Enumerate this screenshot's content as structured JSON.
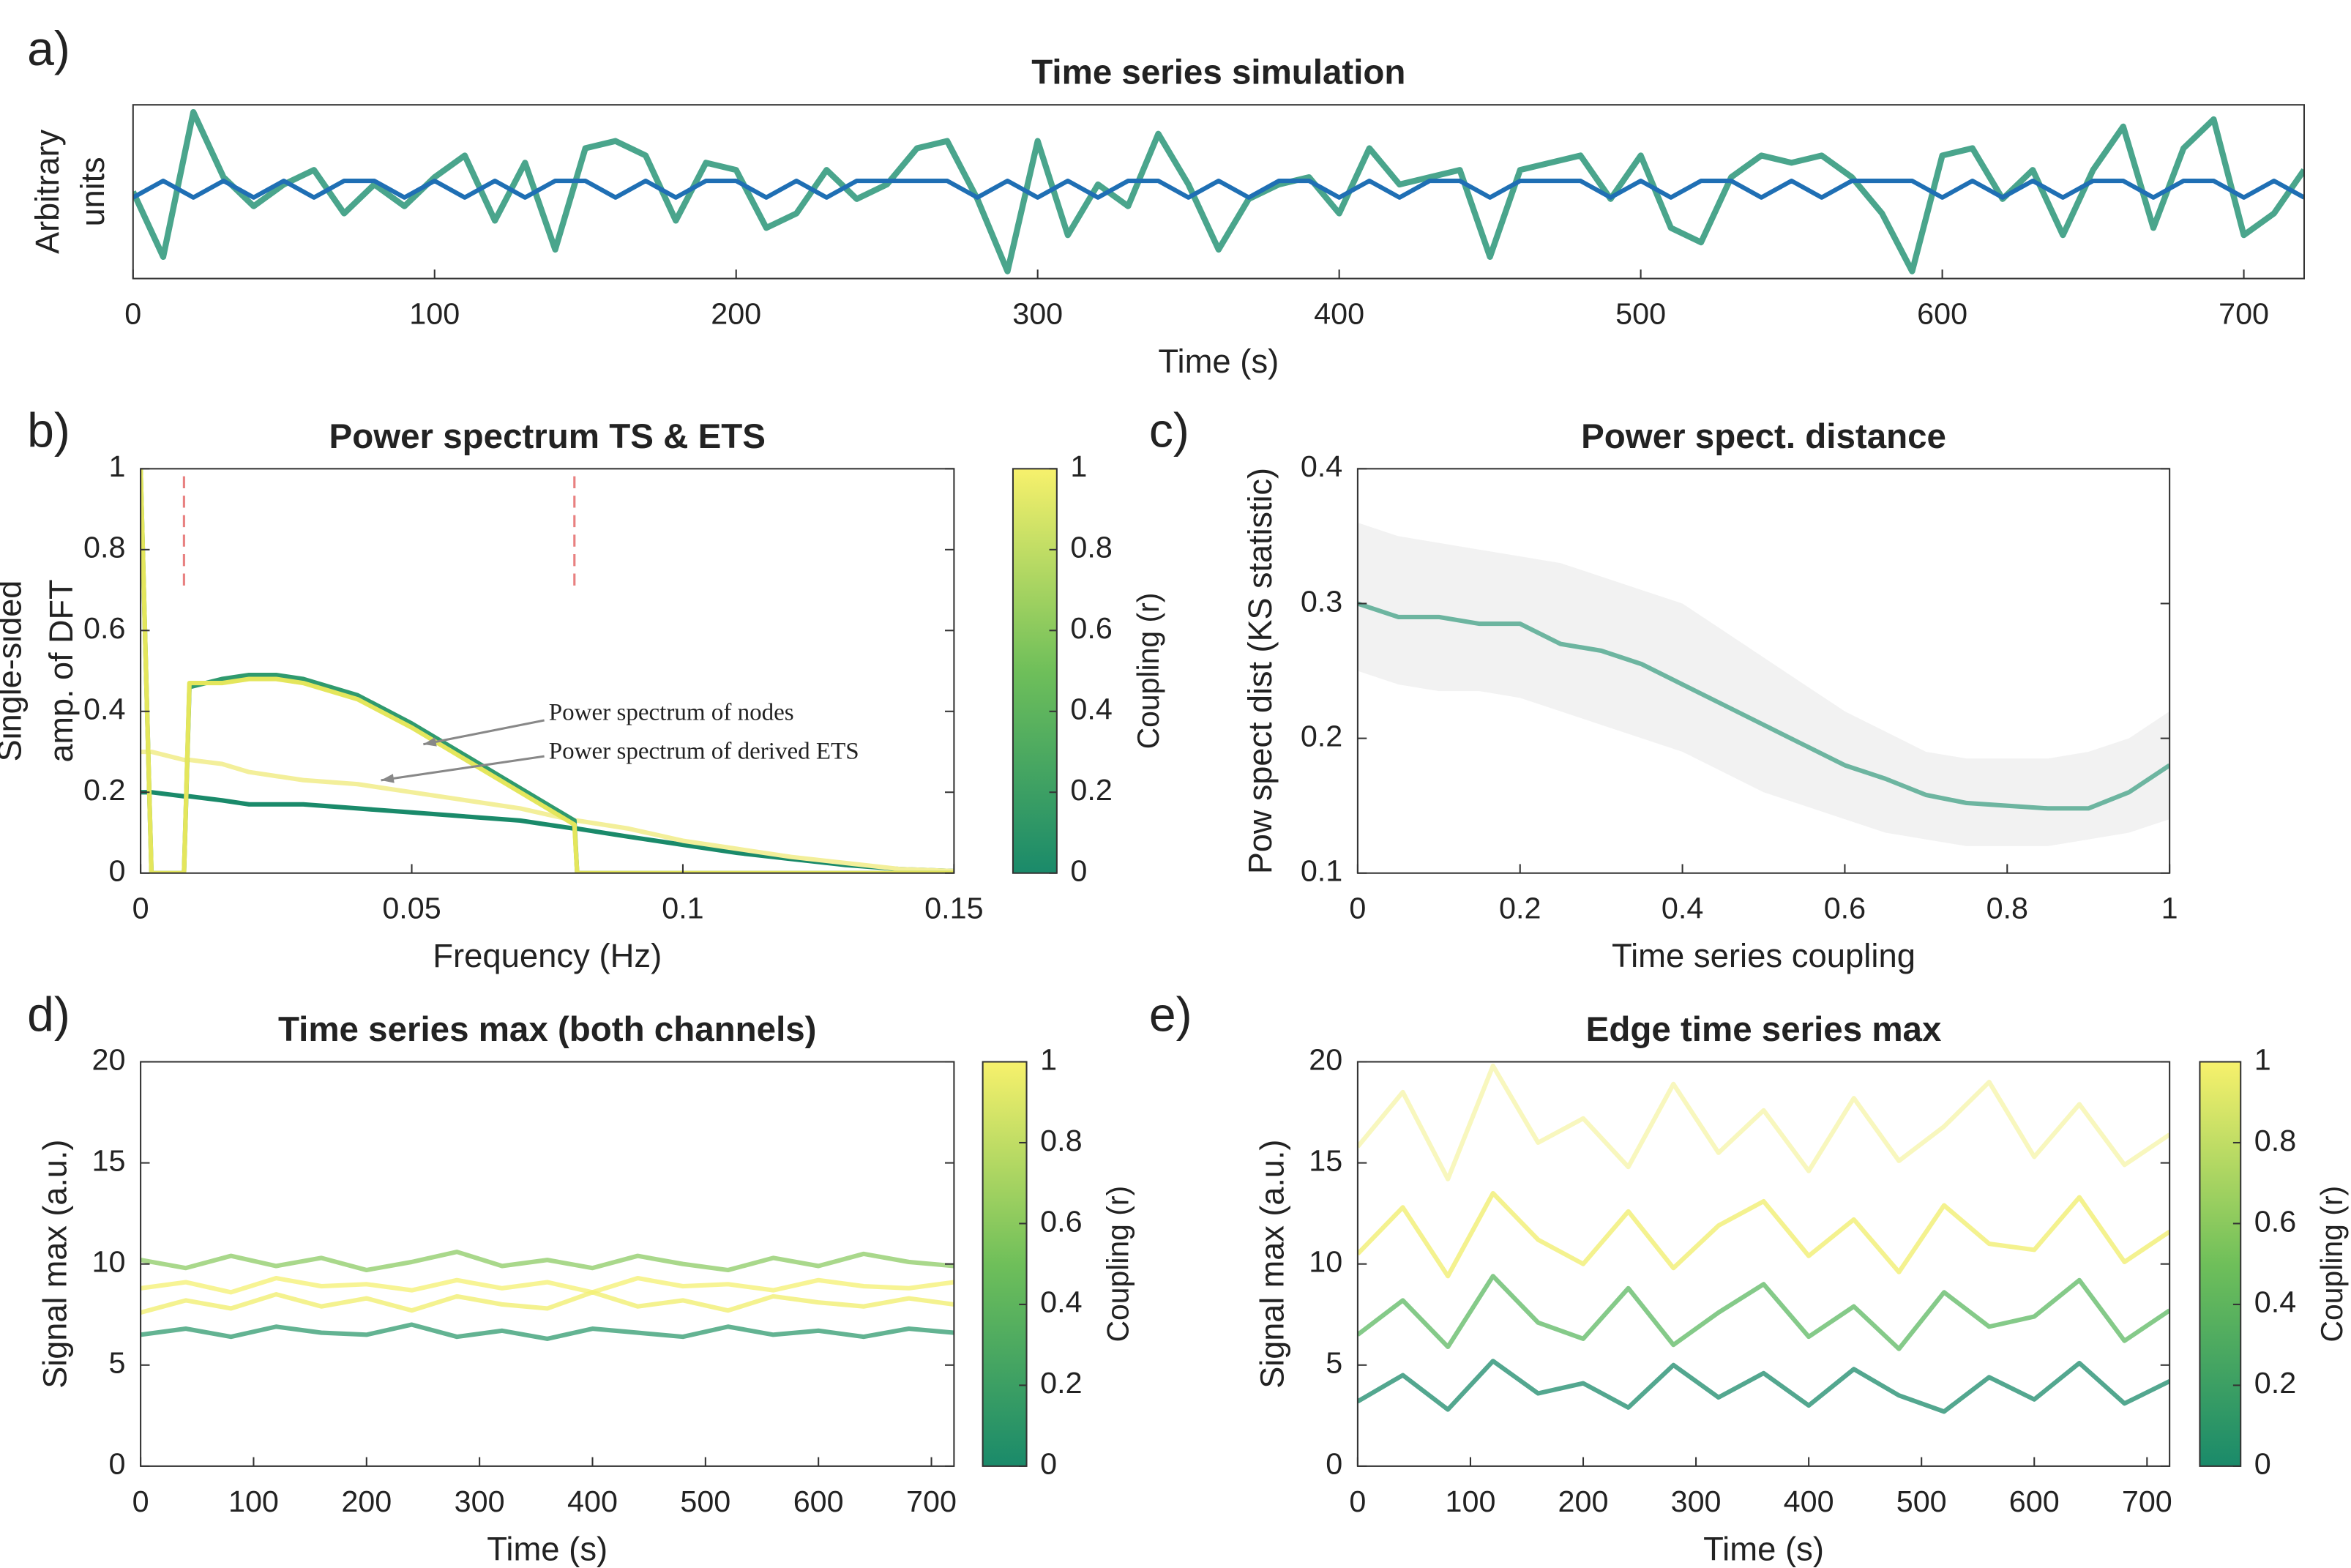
{
  "chart_data": [
    {
      "type": "line",
      "panel_label": "a)",
      "title": "Time series simulation",
      "xlabel": "Time (s)",
      "ylabel": [
        "Arbitrary",
        "units"
      ],
      "xlim": [
        0,
        720
      ],
      "xticks": [
        0,
        100,
        200,
        300,
        400,
        500,
        600,
        700
      ],
      "ylim": [
        -1.2,
        1.2
      ],
      "x": [
        0,
        10,
        20,
        30,
        40,
        50,
        60,
        70,
        80,
        90,
        100,
        110,
        120,
        130,
        140,
        150,
        160,
        170,
        180,
        190,
        200,
        210,
        220,
        230,
        240,
        250,
        260,
        270,
        280,
        290,
        300,
        310,
        320,
        330,
        340,
        350,
        360,
        370,
        380,
        390,
        400,
        410,
        420,
        430,
        440,
        450,
        460,
        470,
        480,
        490,
        500,
        510,
        520,
        530,
        540,
        550,
        560,
        570,
        580,
        590,
        600,
        610,
        620,
        630,
        640,
        650,
        660,
        670,
        680,
        690,
        700,
        710,
        720
      ],
      "series": [
        {
          "color": "#4aa58c",
          "values": [
            0,
            -0.9,
            1.1,
            0.2,
            -0.2,
            0.1,
            0.3,
            -0.3,
            0.1,
            -0.2,
            0.2,
            0.5,
            -0.4,
            0.4,
            -0.8,
            0.6,
            0.7,
            0.5,
            -0.4,
            0.4,
            0.3,
            -0.5,
            -0.3,
            0.3,
            -0.1,
            0.1,
            0.6,
            0.7,
            -0.1,
            -1.1,
            0.7,
            -0.6,
            0.1,
            -0.2,
            0.8,
            0.1,
            -0.8,
            -0.1,
            0.1,
            0.2,
            -0.3,
            0.6,
            0.1,
            0.2,
            0.3,
            -0.9,
            0.3,
            0.4,
            0.5,
            -0.1,
            0.5,
            -0.5,
            -0.7,
            0.2,
            0.5,
            0.4,
            0.5,
            0.2,
            -0.3,
            -1.1,
            0.5,
            0.6,
            -0.1,
            0.3,
            -0.6,
            0.3,
            0.9,
            -0.5,
            0.6,
            1.0,
            -0.6,
            -0.3,
            0.3
          ]
        },
        {
          "color": "#1f6fb4",
          "values": [
            -0.08,
            0.15,
            -0.08,
            0.15,
            -0.08,
            0.15,
            -0.08,
            0.15,
            0.15,
            -0.08,
            0.15,
            -0.08,
            0.15,
            -0.08,
            0.15,
            0.15,
            -0.08,
            0.15,
            -0.08,
            0.15,
            0.15,
            -0.08,
            0.15,
            -0.08,
            0.15,
            0.15,
            0.15,
            0.15,
            -0.08,
            0.15,
            -0.08,
            0.15,
            -0.08,
            0.15,
            0.15,
            -0.08,
            0.15,
            -0.08,
            0.15,
            0.15,
            -0.08,
            0.15,
            -0.08,
            0.15,
            0.15,
            -0.08,
            0.15,
            0.15,
            0.15,
            -0.08,
            0.15,
            -0.08,
            0.15,
            0.15,
            -0.08,
            0.15,
            -0.08,
            0.15,
            0.15,
            0.15,
            -0.08,
            0.15,
            -0.08,
            0.15,
            -0.08,
            0.15,
            0.15,
            -0.08,
            0.15,
            0.15,
            -0.08,
            0.15,
            -0.08
          ]
        }
      ]
    },
    {
      "type": "line",
      "panel_label": "b)",
      "title": "Power spectrum TS & ETS",
      "xlabel": "Frequency (Hz)",
      "ylabel": [
        "Single-sided",
        "amp. of DFT"
      ],
      "xlim": [
        0,
        0.15
      ],
      "xticks": [
        0,
        0.05,
        0.1,
        0.15
      ],
      "ylim": [
        0,
        1
      ],
      "yticks": [
        0,
        0.2,
        0.4,
        0.6,
        0.8,
        1
      ],
      "colorbar": {
        "label": "Coupling (r)",
        "clim": [
          0,
          1
        ],
        "ticks": [
          0,
          0.2,
          0.4,
          0.6,
          0.8,
          1
        ],
        "colormap": [
          "#1a8a6a",
          "#6fbf5a",
          "#f7f16c"
        ]
      },
      "vlines": [
        0.008,
        0.08
      ],
      "vline_color": "#e88080",
      "annotations": [
        "Power spectrum of nodes",
        "Power spectrum of derived ETS"
      ],
      "x": [
        0,
        0.002,
        0.008,
        0.009,
        0.015,
        0.02,
        0.025,
        0.03,
        0.04,
        0.05,
        0.06,
        0.07,
        0.08,
        0.0805,
        0.09,
        0.1,
        0.11,
        0.12,
        0.13,
        0.14,
        0.15
      ],
      "series": [
        {
          "color": "#1a8a6a",
          "values": [
            0.2,
            0.2,
            0.19,
            0.19,
            0.18,
            0.17,
            0.17,
            0.17,
            0.16,
            0.15,
            0.14,
            0.13,
            0.11,
            0.11,
            0.09,
            0.07,
            0.05,
            0.035,
            0.02,
            0.01,
            0.005
          ]
        },
        {
          "color": "#f3ef9a",
          "values": [
            0.3,
            0.3,
            0.28,
            0.28,
            0.27,
            0.25,
            0.24,
            0.23,
            0.22,
            0.2,
            0.18,
            0.16,
            0.13,
            0.13,
            0.11,
            0.08,
            0.06,
            0.04,
            0.025,
            0.01,
            0.005
          ]
        },
        {
          "color": "#2f9a6e",
          "values": [
            1,
            0,
            0,
            0.46,
            0.48,
            0.49,
            0.49,
            0.48,
            0.44,
            0.37,
            0.29,
            0.21,
            0.13,
            0,
            0,
            0,
            0,
            0,
            0,
            0,
            0
          ]
        },
        {
          "color": "#e4e65c",
          "values": [
            1,
            0,
            0,
            0.47,
            0.47,
            0.48,
            0.48,
            0.47,
            0.43,
            0.36,
            0.28,
            0.2,
            0.12,
            0,
            0,
            0,
            0,
            0,
            0,
            0,
            0
          ]
        }
      ]
    },
    {
      "type": "line",
      "panel_label": "c)",
      "title": "Power spect. distance",
      "xlabel": "Time series coupling",
      "ylabel": "Pow spect dist (KS statistic)",
      "xlim": [
        0,
        1
      ],
      "xticks": [
        0,
        0.2,
        0.4,
        0.6,
        0.8,
        1
      ],
      "ylim": [
        0.1,
        0.4
      ],
      "yticks": [
        0.1,
        0.2,
        0.3,
        0.4
      ],
      "x": [
        0,
        0.05,
        0.1,
        0.15,
        0.2,
        0.25,
        0.3,
        0.35,
        0.4,
        0.45,
        0.5,
        0.55,
        0.6,
        0.65,
        0.7,
        0.75,
        0.8,
        0.85,
        0.9,
        0.95,
        1
      ],
      "band": {
        "color": "#f2f2f2",
        "upper": [
          0.36,
          0.35,
          0.345,
          0.34,
          0.335,
          0.33,
          0.32,
          0.31,
          0.3,
          0.28,
          0.26,
          0.24,
          0.22,
          0.205,
          0.19,
          0.185,
          0.185,
          0.185,
          0.19,
          0.2,
          0.22
        ],
        "lower": [
          0.25,
          0.24,
          0.235,
          0.235,
          0.23,
          0.22,
          0.21,
          0.2,
          0.19,
          0.175,
          0.16,
          0.15,
          0.14,
          0.13,
          0.125,
          0.12,
          0.12,
          0.12,
          0.125,
          0.13,
          0.14
        ]
      },
      "series": [
        {
          "color": "#6db5a0",
          "values": [
            0.3,
            0.29,
            0.29,
            0.285,
            0.285,
            0.27,
            0.265,
            0.255,
            0.24,
            0.225,
            0.21,
            0.195,
            0.18,
            0.17,
            0.158,
            0.152,
            0.15,
            0.148,
            0.148,
            0.16,
            0.18
          ]
        }
      ]
    },
    {
      "type": "line",
      "panel_label": "d)",
      "title": "Time series max (both channels)",
      "xlabel": "Time (s)",
      "ylabel": "Signal max (a.u.)",
      "xlim": [
        0,
        720
      ],
      "xticks": [
        0,
        100,
        200,
        300,
        400,
        500,
        600,
        700
      ],
      "ylim": [
        0,
        20
      ],
      "yticks": [
        0,
        5,
        10,
        15,
        20
      ],
      "colorbar": {
        "label": "Coupling (r)",
        "clim": [
          0,
          1
        ],
        "ticks": [
          0,
          0.2,
          0.4,
          0.6,
          0.8,
          1
        ],
        "colormap": [
          "#1a8a6a",
          "#6fbf5a",
          "#f7f16c"
        ]
      },
      "x": [
        0,
        40,
        80,
        120,
        160,
        200,
        240,
        280,
        320,
        360,
        400,
        440,
        480,
        520,
        560,
        600,
        640,
        680,
        720
      ],
      "series": [
        {
          "color": "#2f9a6e",
          "values": [
            6.5,
            6.8,
            6.4,
            6.9,
            6.6,
            6.5,
            7.0,
            6.4,
            6.7,
            6.3,
            6.8,
            6.6,
            6.4,
            6.9,
            6.5,
            6.7,
            6.4,
            6.8,
            6.6
          ]
        },
        {
          "color": "#8ccb64",
          "values": [
            10.2,
            9.8,
            10.4,
            9.9,
            10.3,
            9.7,
            10.1,
            10.6,
            9.9,
            10.2,
            9.8,
            10.4,
            10.0,
            9.7,
            10.3,
            9.9,
            10.5,
            10.1,
            9.9
          ]
        },
        {
          "color": "#f0ee6a",
          "values": [
            7.6,
            8.2,
            7.8,
            8.5,
            7.9,
            8.3,
            7.7,
            8.4,
            8.0,
            7.8,
            8.6,
            7.9,
            8.2,
            7.7,
            8.4,
            8.1,
            7.9,
            8.3,
            8.0
          ]
        },
        {
          "color": "#f4f070",
          "values": [
            8.8,
            9.1,
            8.6,
            9.3,
            8.9,
            9.0,
            8.7,
            9.2,
            8.8,
            9.1,
            8.6,
            9.3,
            8.9,
            9.0,
            8.7,
            9.2,
            8.9,
            8.8,
            9.1
          ]
        }
      ]
    },
    {
      "type": "line",
      "panel_label": "e)",
      "title": "Edge time series max",
      "xlabel": "Time (s)",
      "ylabel": "Signal max (a.u.)",
      "xlim": [
        0,
        720
      ],
      "xticks": [
        0,
        100,
        200,
        300,
        400,
        500,
        600,
        700
      ],
      "ylim": [
        0,
        20
      ],
      "yticks": [
        0,
        5,
        10,
        15,
        20
      ],
      "colorbar": {
        "label": "Coupling (r)",
        "clim": [
          0,
          1
        ],
        "ticks": [
          0,
          0.2,
          0.4,
          0.6,
          0.8,
          1
        ],
        "colormap": [
          "#1a8a6a",
          "#6fbf5a",
          "#f7f16c"
        ]
      },
      "x": [
        0,
        40,
        80,
        120,
        160,
        200,
        240,
        280,
        320,
        360,
        400,
        440,
        480,
        520,
        560,
        600,
        640,
        680,
        720
      ],
      "series": [
        {
          "color": "#1a8a6a",
          "values": [
            3.2,
            4.5,
            2.8,
            5.2,
            3.6,
            4.1,
            2.9,
            5.0,
            3.4,
            4.6,
            3.0,
            4.8,
            3.5,
            2.7,
            4.4,
            3.3,
            5.1,
            3.1,
            4.2
          ]
        },
        {
          "color": "#5cb862",
          "values": [
            6.5,
            8.2,
            5.9,
            9.4,
            7.1,
            6.3,
            8.8,
            6.0,
            7.6,
            9.0,
            6.4,
            7.9,
            5.8,
            8.6,
            6.9,
            7.4,
            9.2,
            6.2,
            7.7
          ]
        },
        {
          "color": "#f0ee6a",
          "values": [
            10.5,
            12.8,
            9.4,
            13.5,
            11.2,
            10.0,
            12.6,
            9.8,
            11.9,
            13.1,
            10.4,
            12.2,
            9.6,
            12.9,
            11.0,
            10.7,
            13.3,
            10.1,
            11.6
          ]
        },
        {
          "color": "#f6f4a8",
          "values": [
            15.8,
            18.5,
            14.2,
            19.8,
            16.0,
            17.2,
            14.8,
            18.9,
            15.5,
            17.6,
            14.6,
            18.2,
            15.1,
            16.8,
            19.0,
            15.3,
            17.9,
            14.9,
            16.4
          ]
        }
      ]
    }
  ]
}
